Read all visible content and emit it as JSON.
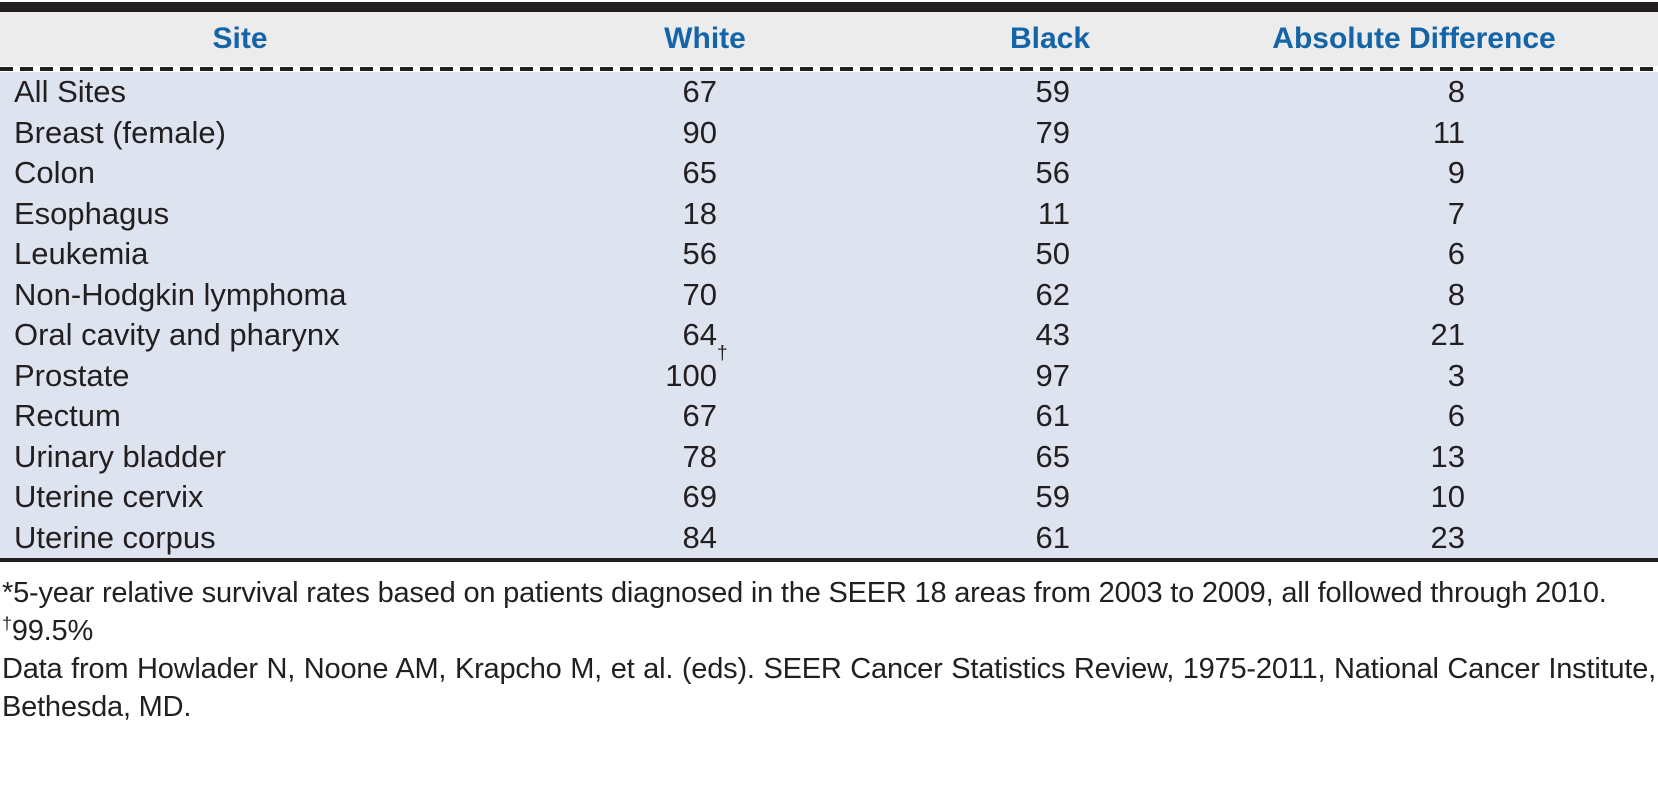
{
  "colors": {
    "accent_blue": "#1464a8",
    "ink": "#231f20",
    "header_bg": "#ececec",
    "body_bg": "#dee3f0"
  },
  "table": {
    "headers": {
      "site": "Site",
      "white": "White",
      "black": "Black",
      "diff": "Absolute Difference"
    },
    "rows": [
      {
        "site": "All Sites",
        "white": "67",
        "white_sup": "",
        "black": "59",
        "diff": "8"
      },
      {
        "site": "Breast (female)",
        "white": "90",
        "white_sup": "",
        "black": "79",
        "diff": "11"
      },
      {
        "site": "Colon",
        "white": "65",
        "white_sup": "",
        "black": "56",
        "diff": "9"
      },
      {
        "site": "Esophagus",
        "white": "18",
        "white_sup": "",
        "black": "11",
        "diff": "7"
      },
      {
        "site": "Leukemia",
        "white": "56",
        "white_sup": "",
        "black": "50",
        "diff": "6"
      },
      {
        "site": "Non-Hodgkin lymphoma",
        "white": "70",
        "white_sup": "",
        "black": "62",
        "diff": "8"
      },
      {
        "site": "Oral cavity and pharynx",
        "white": "64",
        "white_sup": "",
        "black": "43",
        "diff": "21"
      },
      {
        "site": "Prostate",
        "white": "100",
        "white_sup": "†",
        "black": "97",
        "diff": "3"
      },
      {
        "site": "Rectum",
        "white": "67",
        "white_sup": "",
        "black": "61",
        "diff": "6"
      },
      {
        "site": "Urinary bladder",
        "white": "78",
        "white_sup": "",
        "black": "65",
        "diff": "13"
      },
      {
        "site": "Uterine cervix",
        "white": "69",
        "white_sup": "",
        "black": "59",
        "diff": "10"
      },
      {
        "site": "Uterine corpus",
        "white": "84",
        "white_sup": "",
        "black": "61",
        "diff": "23"
      }
    ]
  },
  "notes": [
    {
      "sup": "",
      "text": "*5-year relative survival rates based on patients diagnosed in the SEER 18 areas from 2003 to 2009, all followed through 2010."
    },
    {
      "sup": "†",
      "text": "99.5%"
    },
    {
      "sup": "",
      "text": "Data from Howlader N, Noone AM, Krapcho M, et al. (eds). SEER Cancer Statistics Review, 1975-2011, National Cancer Institute, Bethesda, MD."
    }
  ]
}
